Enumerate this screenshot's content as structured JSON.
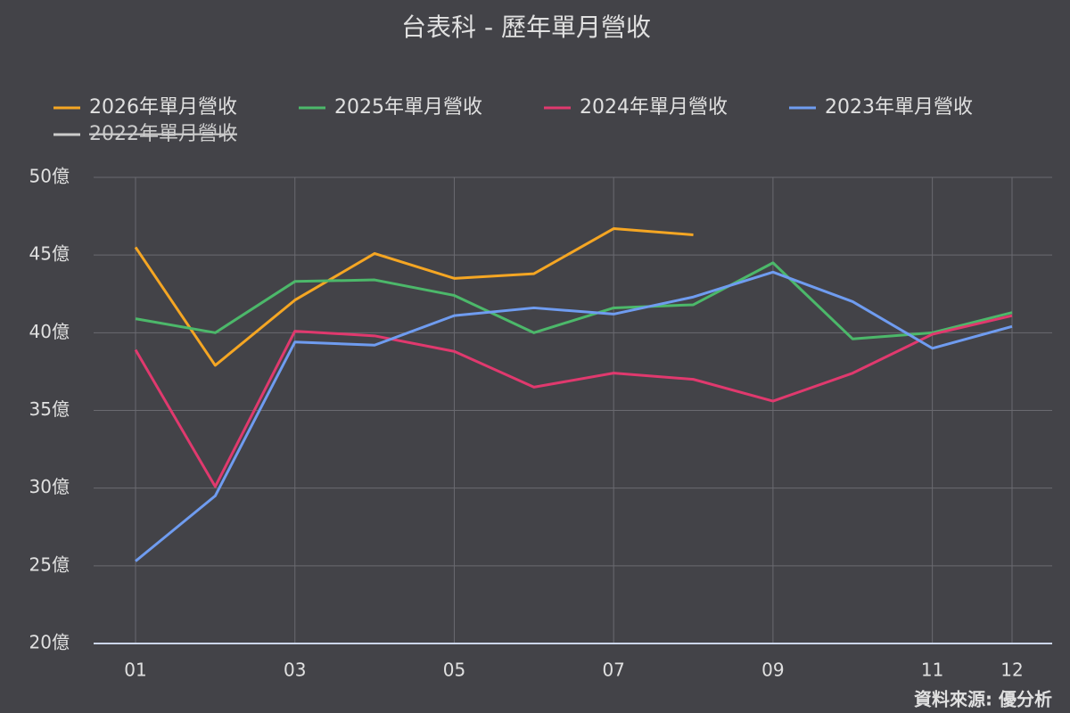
{
  "chart_data": {
    "type": "line",
    "title": "台表科 - 歷年單月營收",
    "source": "資料來源: 優分析",
    "categories": [
      "01",
      null,
      "03",
      null,
      "05",
      null,
      "07",
      null,
      "09",
      null,
      "11",
      "12"
    ],
    "ylim": [
      20,
      50
    ],
    "yticks": [
      {
        "value": 20,
        "label": "20億"
      },
      {
        "value": 25,
        "label": "25億"
      },
      {
        "value": 30,
        "label": "30億"
      },
      {
        "value": 35,
        "label": "35億"
      },
      {
        "value": 40,
        "label": "40億"
      },
      {
        "value": 45,
        "label": "45億"
      },
      {
        "value": 50,
        "label": "50億"
      }
    ],
    "grid": true,
    "legend": "top",
    "series": [
      {
        "name": "2026年單月營收",
        "color": "#f5a623",
        "values": [
          45.5,
          37.9,
          42.1,
          45.1,
          43.5,
          43.8,
          46.7,
          46.3,
          null,
          null,
          null,
          null
        ]
      },
      {
        "name": "2025年單月營收",
        "color": "#4cb86a",
        "values": [
          40.9,
          40.0,
          43.3,
          43.4,
          42.4,
          40.0,
          41.6,
          41.8,
          44.5,
          39.6,
          40.0,
          41.3
        ]
      },
      {
        "name": "2024年單月營收",
        "color": "#e0396e",
        "values": [
          38.9,
          30.1,
          40.1,
          39.8,
          38.8,
          36.5,
          37.4,
          37.0,
          35.6,
          37.4,
          39.9,
          41.1
        ]
      },
      {
        "name": "2023年單月營收",
        "color": "#6f9cf0",
        "values": [
          25.3,
          29.5,
          39.4,
          39.2,
          41.1,
          41.6,
          41.2,
          42.3,
          43.9,
          42.0,
          39.0,
          40.4
        ]
      },
      {
        "name": "2022年單月營收",
        "color": "#cccccc",
        "visible": false
      }
    ]
  }
}
